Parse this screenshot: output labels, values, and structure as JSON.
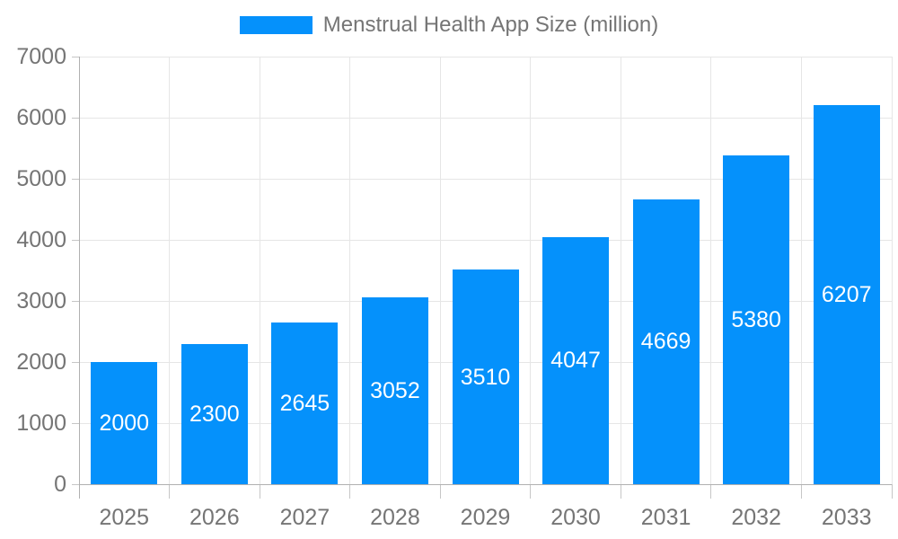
{
  "legend": {
    "label": "Menstrual Health App Size (million)",
    "swatch_color": "#0591fb"
  },
  "chart_data": {
    "type": "bar",
    "title": "Menstrual Health App Size (million)",
    "categories": [
      "2025",
      "2026",
      "2027",
      "2028",
      "2029",
      "2030",
      "2031",
      "2032",
      "2033"
    ],
    "values": [
      2000,
      2300,
      2645,
      3052,
      3510,
      4047,
      4669,
      5380,
      6207
    ],
    "series": [
      {
        "name": "Menstrual Health App Size (million)",
        "values": [
          2000,
          2300,
          2645,
          3052,
          3510,
          4047,
          4669,
          5380,
          6207
        ]
      }
    ],
    "xlabel": "",
    "ylabel": "",
    "ylim": [
      0,
      7000
    ],
    "yticks": [
      0,
      1000,
      2000,
      3000,
      4000,
      5000,
      6000,
      7000
    ],
    "grid": true,
    "legend_position": "top",
    "value_labels": "inside-center"
  },
  "colors": {
    "bar": "#0591fb",
    "grid": "#e6e6e6",
    "axis": "#b0b0b0",
    "tick": "#c6c6c6",
    "text": "#757575",
    "value_label": "#ffffff",
    "background": "#ffffff"
  }
}
